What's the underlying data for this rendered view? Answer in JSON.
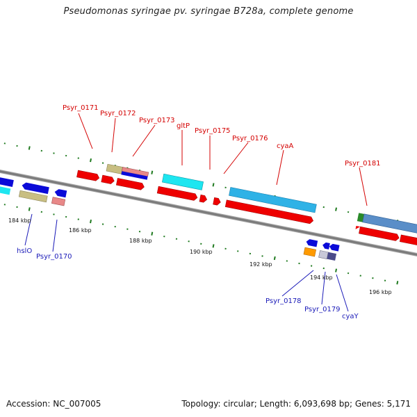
{
  "title": "Pseudomonas syringae pv. syringae B728a, complete genome",
  "footer": {
    "accession": "Accession: NC_007005",
    "summary": "Topology: circular; Length: 6,093,698 bp; Genes: 5,171"
  },
  "ticks": [
    "184 kbp",
    "186 kbp",
    "188 kbp",
    "190 kbp",
    "192 kbp",
    "194 kbp",
    "196 kbp"
  ],
  "labels_top": [
    "Psyr_0171",
    "Psyr_0172",
    "Psyr_0173",
    "gltP",
    "Psyr_0175",
    "Psyr_0176",
    "cyaA",
    "Psyr_0181"
  ],
  "labels_bottom": [
    "hslO",
    "Psyr_0170",
    "Psyr_0178",
    "Psyr_0179",
    "cyaY"
  ],
  "colors": {
    "label_top": "#d40000",
    "label_bottom": "#1a1ab8",
    "backbone": "#7f7f7f",
    "tick_mark": "#1f7a1f",
    "cds_red": "#ee0000",
    "cds_blue": "#0a0ad8",
    "cyan": "#1ee6f0",
    "light_blue": "#2fb2e6",
    "khaki": "#c8be82",
    "salmon": "#e88888",
    "steel_blue": "#5a8ec8",
    "orange": "#ff9a00",
    "dark_green": "#2a8a2a"
  }
}
